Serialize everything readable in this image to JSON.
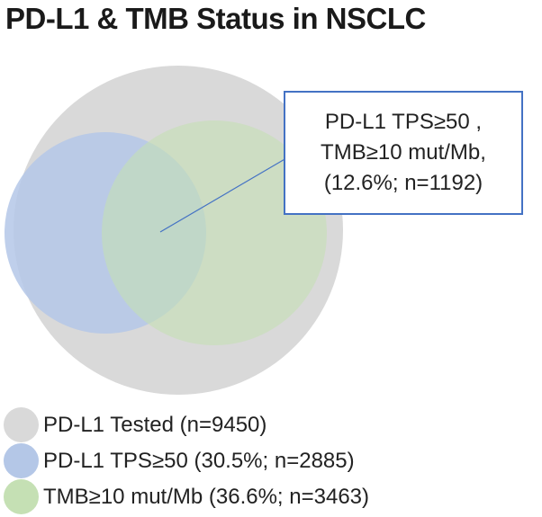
{
  "title": "PD-L1 & TMB Status in NSCLC",
  "colors": {
    "tested": "#d9d9d9",
    "pdl1": "#b4c7e7",
    "tmb": "#c5e0b4",
    "callout_border": "#4472c4"
  },
  "callout": {
    "line1": "PD-L1 TPS≥50 ,",
    "line2": "TMB≥10 mut/Mb,",
    "line3": "(12.6%; n=1192)"
  },
  "legend": [
    {
      "label": "PD-L1 Tested (n=9450)",
      "color": "#d9d9d9"
    },
    {
      "label": "PD-L1 TPS≥50 (30.5%; n=2885)",
      "color": "#b4c7e7"
    },
    {
      "label": "TMB≥10 mut/Mb (36.6%; n=3463)",
      "color": "#c5e0b4"
    }
  ],
  "chart_data": {
    "type": "venn",
    "title": "PD-L1 & TMB Status in NSCLC",
    "sets": [
      {
        "name": "PD-L1 Tested",
        "n": 9450
      },
      {
        "name": "PD-L1 TPS≥50",
        "percent": 30.5,
        "n": 2885
      },
      {
        "name": "TMB≥10 mut/Mb",
        "percent": 36.6,
        "n": 3463
      }
    ],
    "intersections": [
      {
        "sets": [
          "PD-L1 TPS≥50",
          "TMB≥10 mut/Mb"
        ],
        "percent": 12.6,
        "n": 1192
      }
    ]
  }
}
